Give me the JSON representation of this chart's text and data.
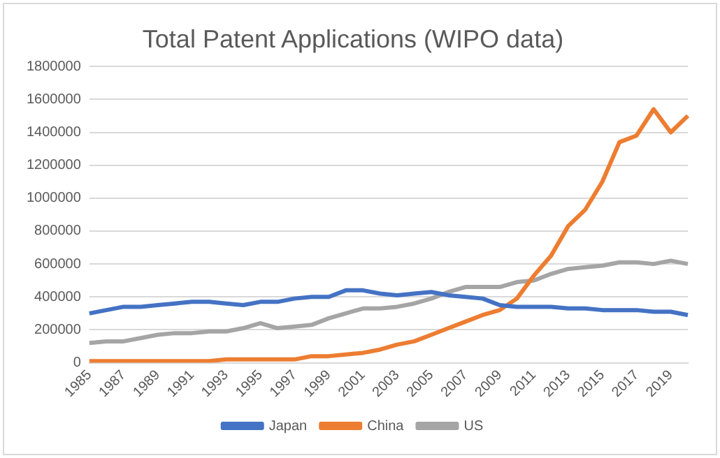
{
  "chart_data": {
    "type": "line",
    "title": "Total Patent Applications (WIPO data)",
    "categories": [
      "1985",
      null,
      "1987",
      null,
      "1989",
      null,
      "1991",
      null,
      "1993",
      null,
      "1995",
      null,
      "1997",
      null,
      "1999",
      null,
      "2001",
      null,
      "2003",
      null,
      "2005",
      null,
      "2007",
      null,
      "2009",
      null,
      "2011",
      null,
      "2013",
      null,
      "2015",
      null,
      "2017",
      null,
      "2019",
      null
    ],
    "series": [
      {
        "name": "Japan",
        "color": "#4472c4",
        "values": [
          300000,
          320000,
          340000,
          340000,
          350000,
          360000,
          370000,
          370000,
          360000,
          350000,
          370000,
          370000,
          390000,
          400000,
          400000,
          440000,
          440000,
          420000,
          410000,
          420000,
          430000,
          410000,
          400000,
          390000,
          350000,
          340000,
          340000,
          340000,
          330000,
          330000,
          320000,
          320000,
          320000,
          310000,
          310000,
          290000
        ]
      },
      {
        "name": "China",
        "color": "#ed7d31",
        "values": [
          10000,
          10000,
          10000,
          10000,
          10000,
          10000,
          10000,
          10000,
          20000,
          20000,
          20000,
          20000,
          20000,
          40000,
          40000,
          50000,
          60000,
          80000,
          110000,
          130000,
          170000,
          210000,
          250000,
          290000,
          320000,
          390000,
          530000,
          650000,
          830000,
          930000,
          1100000,
          1340000,
          1380000,
          1540000,
          1400000,
          1500000
        ]
      },
      {
        "name": "US",
        "color": "#a5a5a5",
        "values": [
          120000,
          130000,
          130000,
          150000,
          170000,
          180000,
          180000,
          190000,
          190000,
          210000,
          240000,
          210000,
          220000,
          230000,
          270000,
          300000,
          330000,
          330000,
          340000,
          360000,
          390000,
          430000,
          460000,
          460000,
          460000,
          490000,
          500000,
          540000,
          570000,
          580000,
          590000,
          610000,
          610000,
          600000,
          620000,
          600000
        ]
      }
    ],
    "ylim": [
      0,
      1800000
    ],
    "yticks": [
      0,
      200000,
      400000,
      600000,
      800000,
      1000000,
      1200000,
      1400000,
      1600000,
      1800000
    ],
    "grid": "y",
    "legend": "bottom",
    "marker": "none",
    "line_style": "solid"
  }
}
